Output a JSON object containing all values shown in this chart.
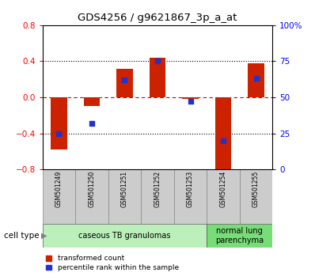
{
  "title": "GDS4256 / g9621867_3p_a_at",
  "samples": [
    "GSM501249",
    "GSM501250",
    "GSM501251",
    "GSM501252",
    "GSM501253",
    "GSM501254",
    "GSM501255"
  ],
  "red_values": [
    -0.58,
    -0.1,
    0.32,
    0.44,
    -0.02,
    -0.8,
    0.38
  ],
  "blue_pct": [
    25,
    32,
    62,
    75,
    47,
    20,
    63
  ],
  "ylim_left": [
    -0.8,
    0.8
  ],
  "yticks_left": [
    -0.8,
    -0.4,
    0.0,
    0.4,
    0.8
  ],
  "yticks_right": [
    0,
    25,
    50,
    75,
    100
  ],
  "ytick_labels_right": [
    "0",
    "25",
    "50",
    "75",
    "100%"
  ],
  "bar_width": 0.5,
  "red_color": "#cc2200",
  "blue_color": "#2233cc",
  "blue_sq_size": 22,
  "legend_red": "transformed count",
  "legend_blue": "percentile rank within the sample",
  "cell_groups": [
    {
      "label": "caseous TB granulomas",
      "start": 0,
      "end": 4,
      "color": "#bbf0bb"
    },
    {
      "label": "normal lung\nparenchyma",
      "start": 5,
      "end": 6,
      "color": "#77dd77"
    }
  ],
  "title_fontsize": 9.5,
  "tick_fontsize": 7.5,
  "sample_label_fontsize": 5.5,
  "cell_type_fontsize": 7.5,
  "legend_fontsize": 6.5
}
